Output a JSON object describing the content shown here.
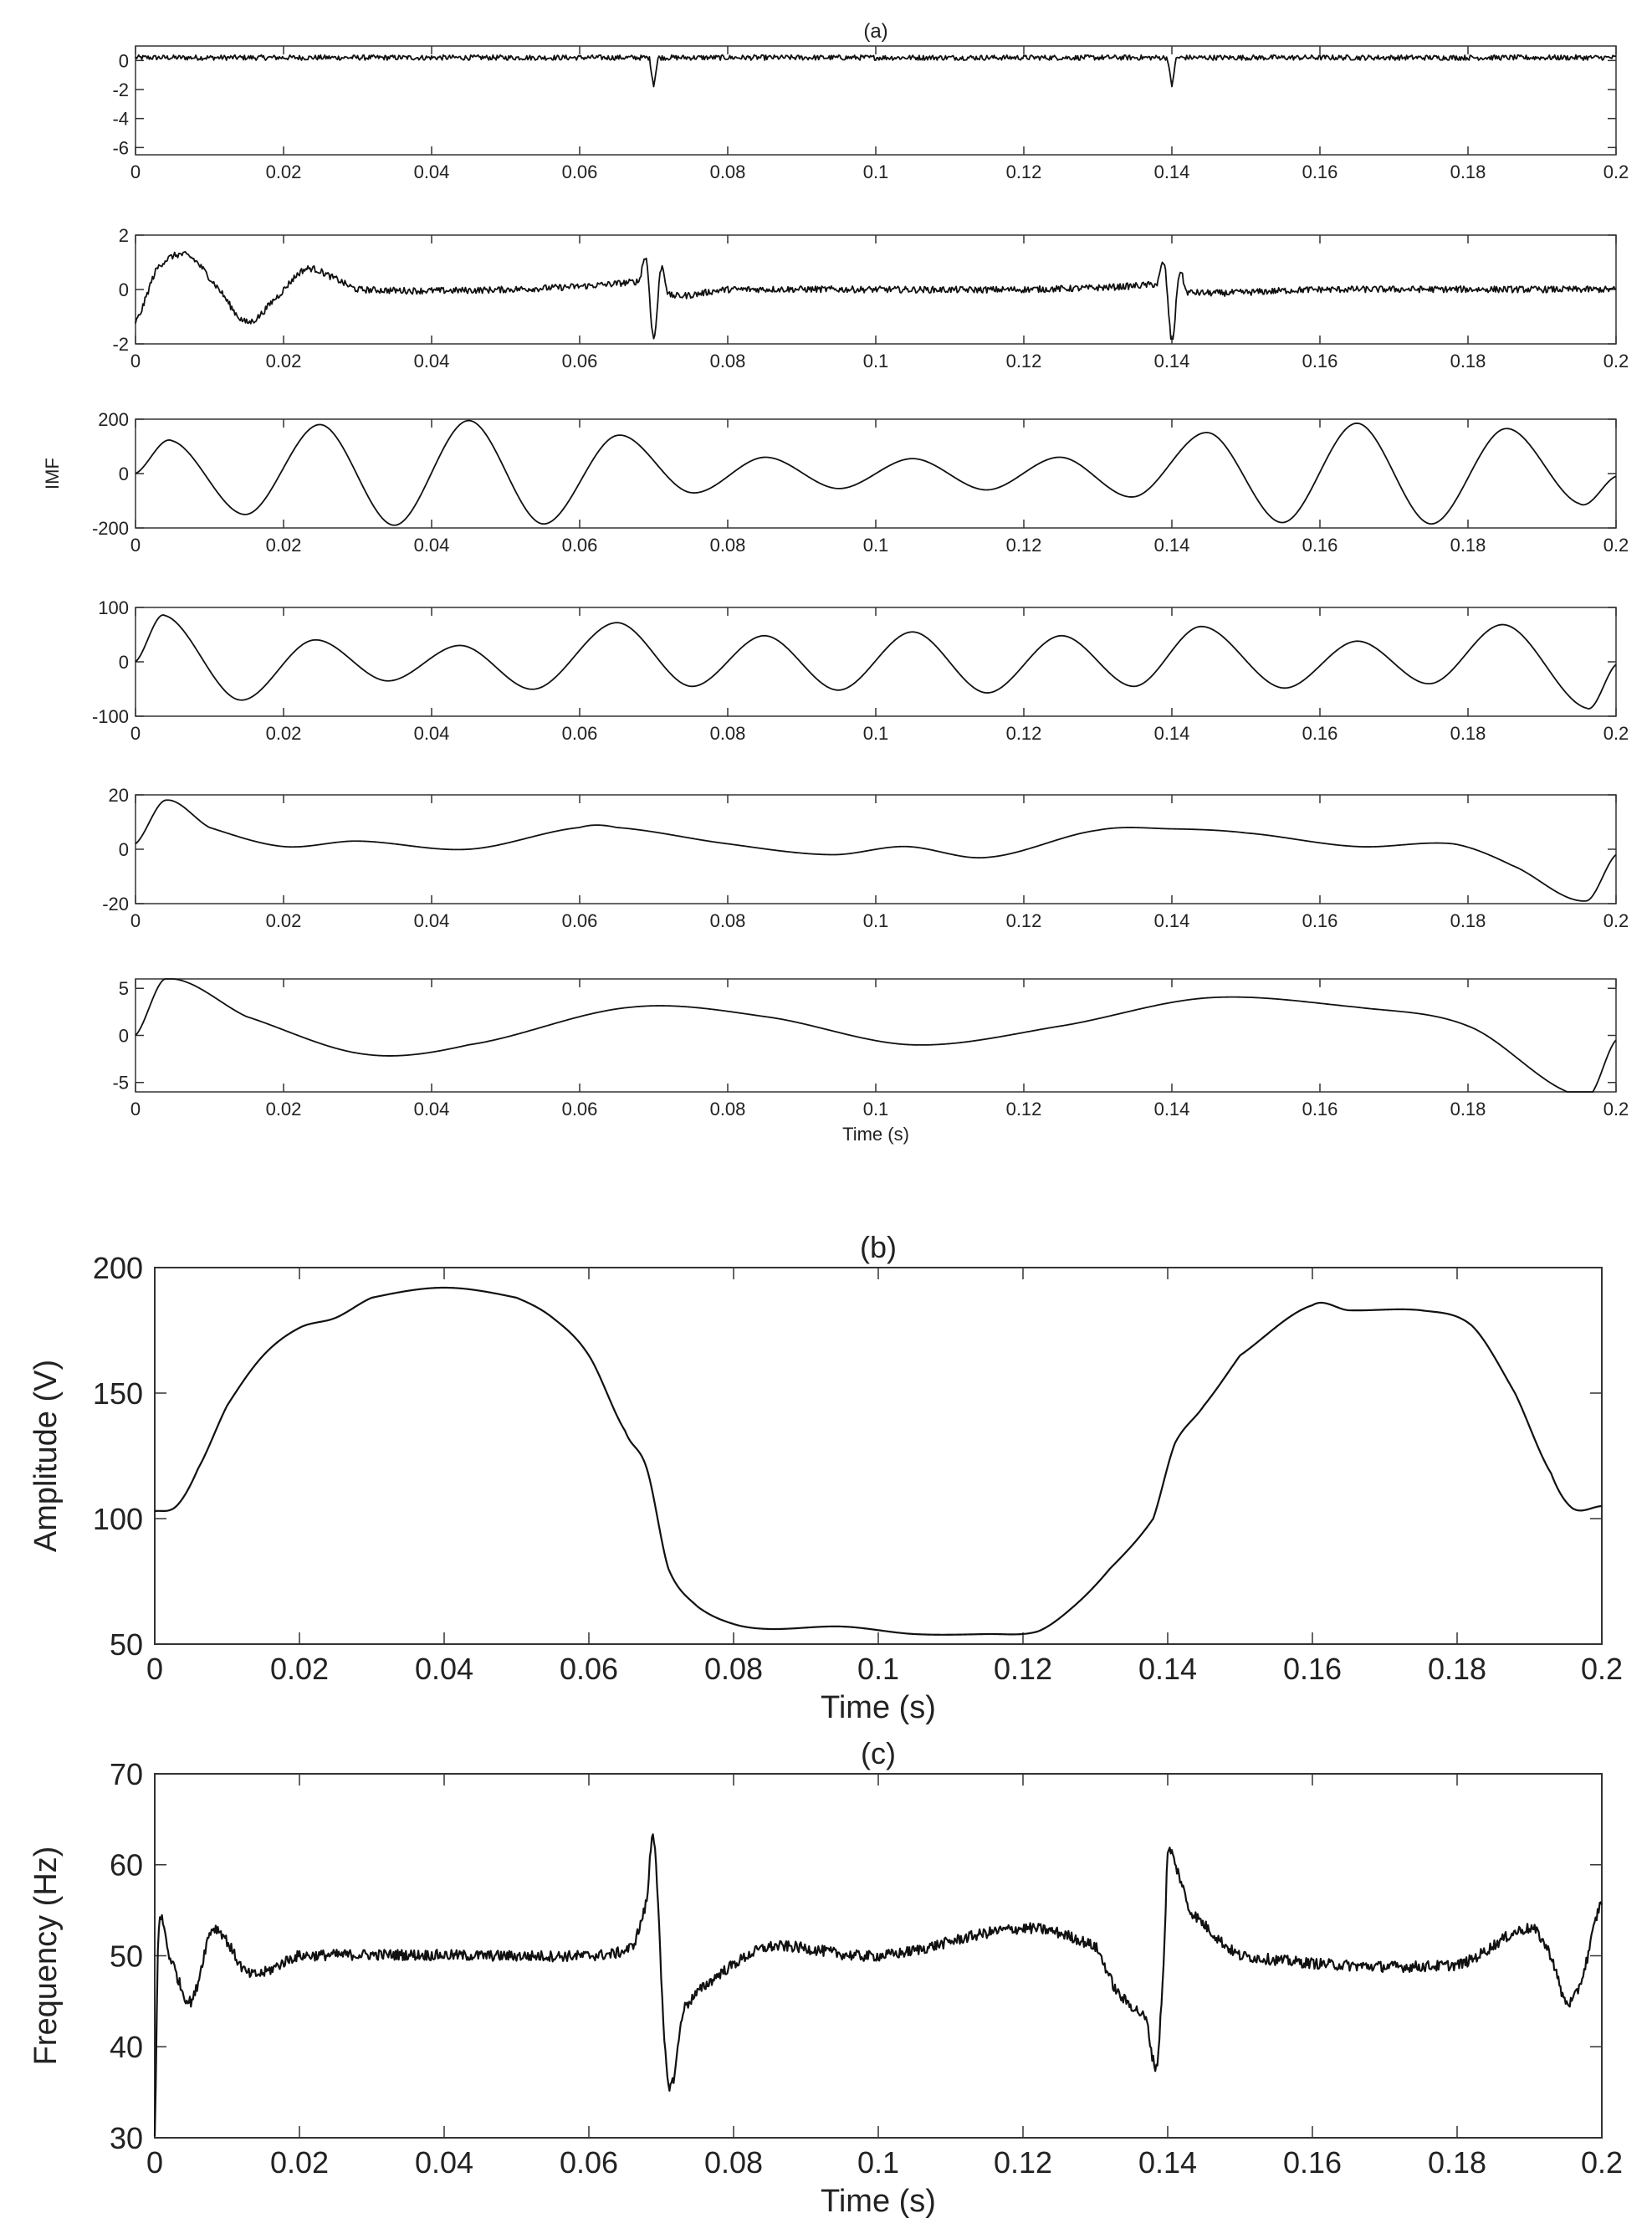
{
  "chart_data": [
    {
      "type": "line",
      "title": "(a)",
      "ylabel": "",
      "xlabel": "",
      "xlim": [
        0,
        0.2
      ],
      "ylim": [
        -6.5,
        1
      ],
      "xticks": [
        0,
        0.02,
        0.04,
        0.06,
        0.08,
        0.1,
        0.12,
        0.14,
        0.16,
        0.18,
        0.2
      ],
      "xtick_labels": [
        "0",
        "0.02",
        "0.04",
        "0.06",
        "0.08",
        "0.1",
        "0.12",
        "0.14",
        "0.16",
        "0.18",
        "0.2"
      ],
      "yticks": [
        0,
        -2,
        -4,
        -6
      ],
      "ytick_labels": [
        "0",
        "-2",
        "-4",
        "-6"
      ],
      "series": [
        {
          "kind": "noise",
          "base": 0.2,
          "noise": 0.18,
          "spikes": [
            [
              0.07,
              -1.8
            ],
            [
              0.14,
              -1.8
            ]
          ]
        }
      ]
    },
    {
      "type": "line",
      "title": "",
      "ylabel": "",
      "xlabel": "",
      "xlim": [
        0,
        0.2
      ],
      "ylim": [
        -2,
        2
      ],
      "xticks": [
        0,
        0.02,
        0.04,
        0.06,
        0.08,
        0.1,
        0.12,
        0.14,
        0.16,
        0.18,
        0.2
      ],
      "xtick_labels": [
        "0",
        "0.02",
        "0.04",
        "0.06",
        "0.08",
        "0.1",
        "0.12",
        "0.14",
        "0.16",
        "0.18",
        "0.2"
      ],
      "yticks": [
        2,
        0,
        -2
      ],
      "ytick_labels": [
        "2",
        "0",
        "-2"
      ],
      "series": [
        {
          "kind": "points",
          "noise": 0.12,
          "x": [
            0,
            0.003,
            0.007,
            0.011,
            0.015,
            0.019,
            0.023,
            0.027,
            0.03,
            0.05,
            0.068,
            0.069,
            0.07,
            0.071,
            0.072,
            0.08,
            0.12,
            0.138,
            0.139,
            0.14,
            0.141,
            0.142,
            0.16,
            0.2
          ],
          "y": [
            -1.2,
            0.8,
            1.25,
            0.1,
            -1.2,
            -0.3,
            0.75,
            0.4,
            0,
            0,
            0.3,
            1.1,
            -1.8,
            0.8,
            -0.2,
            0,
            0,
            0.2,
            0.9,
            -1.9,
            0.6,
            -0.1,
            0,
            0
          ]
        }
      ]
    },
    {
      "type": "line",
      "title": "",
      "ylabel": "IMF",
      "xlabel": "",
      "xlim": [
        0,
        0.2
      ],
      "ylim": [
        -200,
        200
      ],
      "xticks": [
        0,
        0.02,
        0.04,
        0.06,
        0.08,
        0.1,
        0.12,
        0.14,
        0.16,
        0.18,
        0.2
      ],
      "xtick_labels": [
        "0",
        "0.02",
        "0.04",
        "0.06",
        "0.08",
        "0.1",
        "0.12",
        "0.14",
        "0.16",
        "0.18",
        "0.2"
      ],
      "yticks": [
        200,
        0,
        -200
      ],
      "ytick_labels": [
        "200",
        "0",
        "-200"
      ],
      "series": [
        {
          "kind": "points",
          "noise": 0,
          "x": [
            0,
            0.005,
            0.015,
            0.025,
            0.035,
            0.045,
            0.055,
            0.065,
            0.075,
            0.085,
            0.095,
            0.105,
            0.115,
            0.125,
            0.135,
            0.145,
            0.155,
            0.165,
            0.175,
            0.185,
            0.195,
            0.2
          ],
          "y": [
            0,
            120,
            -150,
            180,
            -190,
            195,
            -185,
            140,
            -70,
            60,
            -55,
            55,
            -60,
            60,
            -85,
            150,
            -180,
            185,
            -185,
            165,
            -110,
            -10
          ]
        }
      ]
    },
    {
      "type": "line",
      "title": "",
      "ylabel": "",
      "xlabel": "",
      "xlim": [
        0,
        0.2
      ],
      "ylim": [
        -100,
        100
      ],
      "xticks": [
        0,
        0.02,
        0.04,
        0.06,
        0.08,
        0.1,
        0.12,
        0.14,
        0.16,
        0.18,
        0.2
      ],
      "xtick_labels": [
        "0",
        "0.02",
        "0.04",
        "0.06",
        "0.08",
        "0.1",
        "0.12",
        "0.14",
        "0.16",
        "0.18",
        "0.2"
      ],
      "yticks": [
        100,
        0,
        -100
      ],
      "ytick_labels": [
        "100",
        "0",
        "-100"
      ],
      "series": [
        {
          "kind": "points",
          "noise": 0,
          "x": [
            0,
            0.004,
            0.014,
            0.024,
            0.034,
            0.044,
            0.054,
            0.065,
            0.075,
            0.085,
            0.095,
            0.105,
            0.115,
            0.125,
            0.135,
            0.144,
            0.155,
            0.165,
            0.175,
            0.185,
            0.196,
            0.2
          ],
          "y": [
            0,
            85,
            -70,
            40,
            -35,
            30,
            -50,
            72,
            -45,
            48,
            -52,
            55,
            -57,
            48,
            -45,
            65,
            -48,
            38,
            -40,
            68,
            -85,
            -5
          ]
        }
      ]
    },
    {
      "type": "line",
      "title": "",
      "ylabel": "",
      "xlabel": "",
      "xlim": [
        0,
        0.2
      ],
      "ylim": [
        -20,
        20
      ],
      "xticks": [
        0,
        0.02,
        0.04,
        0.06,
        0.08,
        0.1,
        0.12,
        0.14,
        0.16,
        0.18,
        0.2
      ],
      "xtick_labels": [
        "0",
        "0.02",
        "0.04",
        "0.06",
        "0.08",
        "0.1",
        "0.12",
        "0.14",
        "0.16",
        "0.18",
        "0.2"
      ],
      "yticks": [
        20,
        0,
        -20
      ],
      "ytick_labels": [
        "20",
        "0",
        "-20"
      ],
      "series": [
        {
          "kind": "points",
          "noise": 0,
          "x": [
            0,
            0.004,
            0.01,
            0.02,
            0.03,
            0.045,
            0.06,
            0.065,
            0.08,
            0.094,
            0.104,
            0.115,
            0.13,
            0.14,
            0.15,
            0.165,
            0.178,
            0.186,
            0.196,
            0.2
          ],
          "y": [
            2,
            18,
            8,
            1,
            3,
            0,
            8,
            8,
            2,
            -2,
            1,
            -3,
            7,
            7.5,
            6,
            1,
            2,
            -6,
            -19,
            -2
          ]
        }
      ]
    },
    {
      "type": "line",
      "title": "",
      "ylabel": "",
      "xlabel": "Time (s)",
      "xlim": [
        0,
        0.2
      ],
      "ylim": [
        -6,
        6
      ],
      "xticks": [
        0,
        0.02,
        0.04,
        0.06,
        0.08,
        0.1,
        0.12,
        0.14,
        0.16,
        0.18,
        0.2
      ],
      "xtick_labels": [
        "0",
        "0.02",
        "0.04",
        "0.06",
        "0.08",
        "0.1",
        "0.12",
        "0.14",
        "0.16",
        "0.18",
        "0.2"
      ],
      "yticks": [
        5,
        0,
        -5
      ],
      "ytick_labels": [
        "5",
        "0",
        "-5"
      ],
      "series": [
        {
          "kind": "points",
          "noise": 0,
          "x": [
            0,
            0.004,
            0.015,
            0.031,
            0.045,
            0.067,
            0.085,
            0.105,
            0.125,
            0.145,
            0.165,
            0.18,
            0.196,
            0.2
          ],
          "y": [
            0,
            6,
            2,
            -2,
            -1,
            3,
            2,
            -1,
            1,
            4,
            3,
            1,
            -6.5,
            -0.5
          ]
        }
      ]
    },
    {
      "type": "line",
      "title": "(b)",
      "ylabel": "Amplitude (V)",
      "xlabel": "Time (s)",
      "xlim": [
        0,
        0.2
      ],
      "ylim": [
        50,
        200
      ],
      "xticks": [
        0,
        0.02,
        0.04,
        0.06,
        0.08,
        0.1,
        0.12,
        0.14,
        0.16,
        0.18,
        0.2
      ],
      "xtick_labels": [
        "0",
        "0.02",
        "0.04",
        "0.06",
        "0.08",
        "0.1",
        "0.12",
        "0.14",
        "0.16",
        "0.18",
        "0.2"
      ],
      "yticks": [
        200,
        150,
        100,
        50
      ],
      "ytick_labels": [
        "200",
        "150",
        "100",
        "50"
      ],
      "series": [
        {
          "kind": "points",
          "noise": 0,
          "x": [
            0,
            0.003,
            0.006,
            0.01,
            0.015,
            0.02,
            0.025,
            0.03,
            0.04,
            0.05,
            0.055,
            0.06,
            0.065,
            0.068,
            0.071,
            0.075,
            0.08,
            0.085,
            0.095,
            0.105,
            0.115,
            0.122,
            0.127,
            0.132,
            0.138,
            0.141,
            0.145,
            0.15,
            0.16,
            0.165,
            0.175,
            0.182,
            0.188,
            0.193,
            0.196,
            0.2
          ],
          "y": [
            103,
            105,
            120,
            145,
            165,
            176,
            180,
            188,
            192,
            188,
            180,
            165,
            135,
            120,
            80,
            65,
            58,
            56,
            57,
            54,
            54,
            55,
            65,
            80,
            100,
            130,
            145,
            165,
            185,
            183,
            183,
            177,
            150,
            118,
            104,
            105
          ]
        }
      ]
    },
    {
      "type": "line",
      "title": "(c)",
      "ylabel": "Frequency (Hz)",
      "xlabel": "Time (s)",
      "xlim": [
        0,
        0.2
      ],
      "ylim": [
        30,
        70
      ],
      "xticks": [
        0,
        0.02,
        0.04,
        0.06,
        0.08,
        0.1,
        0.12,
        0.14,
        0.16,
        0.18,
        0.2
      ],
      "xtick_labels": [
        "0",
        "0.02",
        "0.04",
        "0.06",
        "0.08",
        "0.1",
        "0.12",
        "0.14",
        "0.16",
        "0.18",
        "0.2"
      ],
      "yticks": [
        70,
        60,
        50,
        40,
        30
      ],
      "ytick_labels": [
        "70",
        "60",
        "50",
        "40",
        "30"
      ],
      "series": [
        {
          "kind": "points",
          "noise": 0.6,
          "x": [
            0,
            0.0005,
            0.002,
            0.005,
            0.008,
            0.013,
            0.02,
            0.06,
            0.066,
            0.068,
            0.069,
            0.0705,
            0.0715,
            0.073,
            0.078,
            0.085,
            0.1,
            0.12,
            0.13,
            0.133,
            0.137,
            0.1385,
            0.1395,
            0.14,
            0.141,
            0.143,
            0.15,
            0.18,
            0.19,
            0.193,
            0.195,
            0.197,
            0.2
          ],
          "y": [
            30,
            53,
            50,
            45,
            53,
            48,
            50,
            50,
            51,
            56,
            63,
            40,
            36,
            44,
            48,
            51,
            50,
            53,
            51,
            46,
            43,
            38,
            50,
            61,
            60,
            55,
            50,
            49,
            53,
            50,
            45,
            47,
            56
          ]
        }
      ]
    }
  ]
}
